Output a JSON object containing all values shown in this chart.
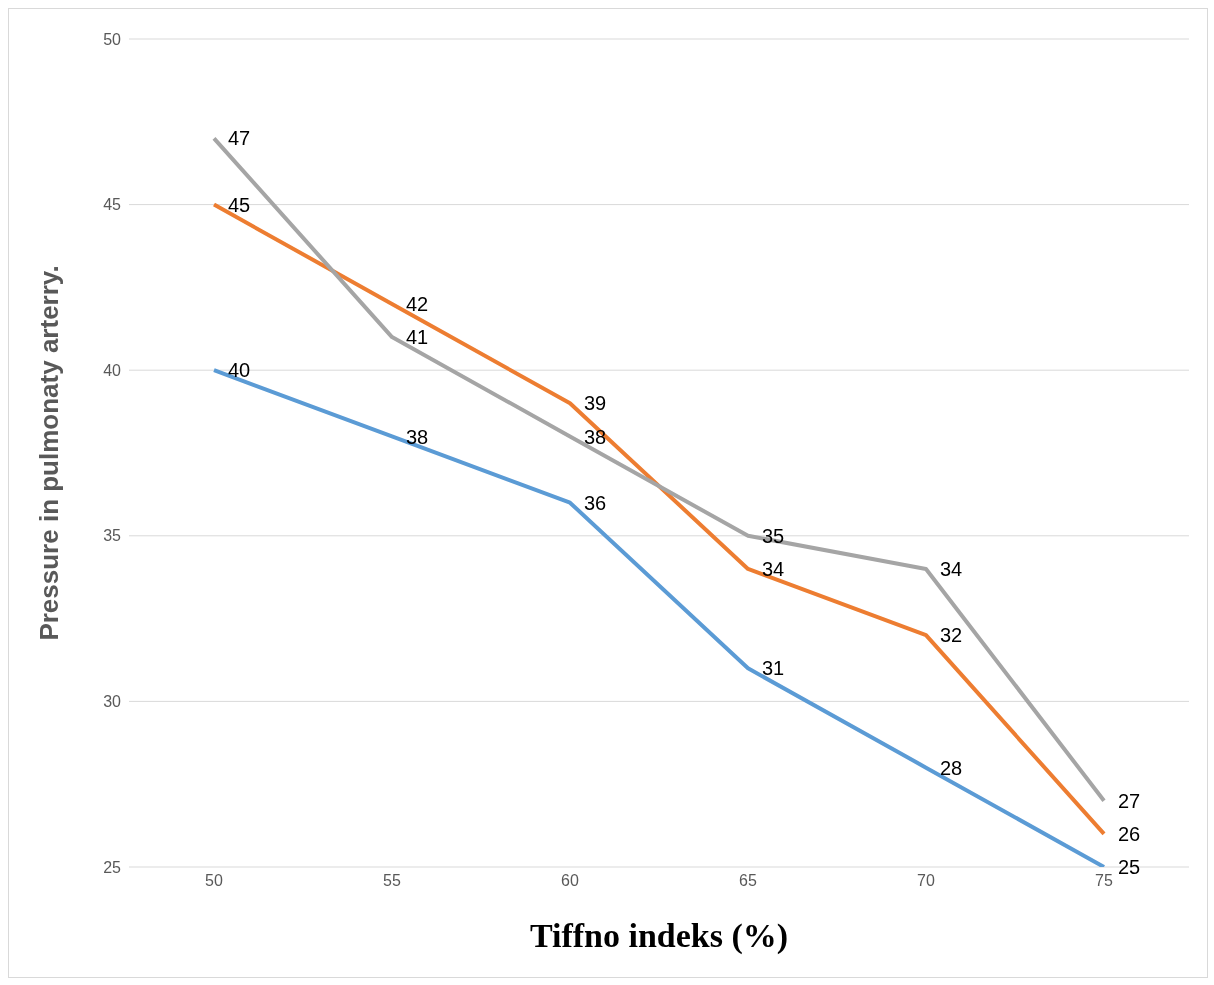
{
  "chart_data": {
    "type": "line",
    "xlabel": "Tiffno indeks (%)",
    "ylabel": "Pressure in pulmonaty arterry.",
    "categories": [
      "50",
      "55",
      "60",
      "65",
      "70",
      "75"
    ],
    "series": [
      {
        "color": "#5b9bd5",
        "values": [
          40,
          38,
          36,
          31,
          28,
          25
        ]
      },
      {
        "color": "#ed7d31",
        "values": [
          45,
          42,
          39,
          34,
          32,
          26
        ]
      },
      {
        "color": "#a5a5a5",
        "values": [
          47,
          41,
          38,
          35,
          34,
          27
        ]
      }
    ],
    "ylim": [
      25,
      50
    ],
    "yticks": [
      25,
      30,
      35,
      40,
      45,
      50
    ],
    "grid": "y",
    "data_labels": true,
    "legend": false,
    "marker": "none",
    "line_style": "solid"
  }
}
